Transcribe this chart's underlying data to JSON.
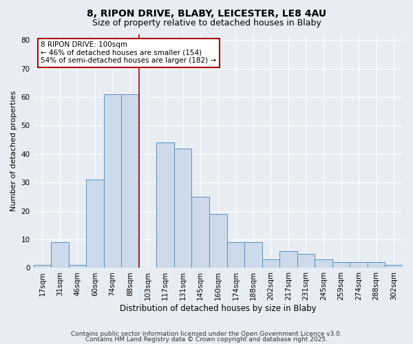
{
  "title1": "8, RIPON DRIVE, BLABY, LEICESTER, LE8 4AU",
  "title2": "Size of property relative to detached houses in Blaby",
  "xlabel": "Distribution of detached houses by size in Blaby",
  "ylabel": "Number of detached properties",
  "bar_color": "#ccdaeb",
  "bar_edge_color": "#5f8fb4",
  "vline_color": "#aa0000",
  "vline_x_index": 6,
  "annotation_line1": "8 RIPON DRIVE: 100sqm",
  "annotation_line2": "← 46% of detached houses are smaller (154)",
  "annotation_line3": "54% of semi-detached houses are larger (182) →",
  "annotation_box_color": "#aa0000",
  "annotation_bg": "#ffffff",
  "categories": [
    "17sqm",
    "31sqm",
    "46sqm",
    "60sqm",
    "74sqm",
    "88sqm",
    "103sqm",
    "117sqm",
    "131sqm",
    "145sqm",
    "160sqm",
    "174sqm",
    "188sqm",
    "202sqm",
    "217sqm",
    "231sqm",
    "245sqm",
    "259sqm",
    "274sqm",
    "288sqm",
    "302sqm"
  ],
  "values": [
    1,
    9,
    1,
    31,
    61,
    61,
    0,
    44,
    42,
    25,
    19,
    9,
    9,
    3,
    6,
    5,
    3,
    2,
    2,
    2,
    1
  ],
  "ylim": [
    0,
    82
  ],
  "yticks": [
    0,
    10,
    20,
    30,
    40,
    50,
    60,
    70,
    80
  ],
  "background_color": "#e8edf4",
  "grid_color": "#ffffff",
  "footer_line1": "Contains HM Land Registry data © Crown copyright and database right 2025.",
  "footer_line2": "Contains public sector information licensed under the Open Government Licence v3.0.",
  "title1_fontsize": 10,
  "title2_fontsize": 9,
  "xlabel_fontsize": 8.5,
  "ylabel_fontsize": 8,
  "tick_fontsize": 7.5,
  "annot_fontsize": 7.5,
  "footer_fontsize": 6.5
}
